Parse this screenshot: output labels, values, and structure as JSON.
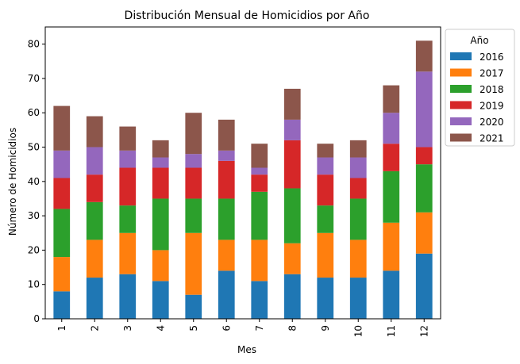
{
  "chart_data": {
    "type": "bar",
    "stacked": true,
    "title": "Distribución Mensual de Homicidios por Año",
    "xlabel": "Mes",
    "ylabel": "Número de Homicidios",
    "categories": [
      "1",
      "2",
      "3",
      "4",
      "5",
      "6",
      "7",
      "8",
      "9",
      "10",
      "11",
      "12"
    ],
    "ylim": [
      0,
      85
    ],
    "yticks": [
      0,
      10,
      20,
      30,
      40,
      50,
      60,
      70,
      80
    ],
    "grid": false,
    "legend": {
      "title": "Año",
      "placement": "outside-top-right"
    },
    "series": [
      {
        "name": "2016",
        "color": "#1f77b4",
        "values": [
          8,
          12,
          13,
          11,
          7,
          14,
          11,
          13,
          12,
          12,
          14,
          19
        ]
      },
      {
        "name": "2017",
        "color": "#ff7f0e",
        "values": [
          10,
          11,
          12,
          9,
          18,
          9,
          12,
          9,
          13,
          11,
          14,
          12
        ]
      },
      {
        "name": "2018",
        "color": "#2ca02c",
        "values": [
          14,
          11,
          8,
          15,
          10,
          12,
          14,
          16,
          8,
          12,
          15,
          14
        ]
      },
      {
        "name": "2019",
        "color": "#d62728",
        "values": [
          9,
          8,
          11,
          9,
          9,
          11,
          5,
          14,
          9,
          6,
          8,
          5
        ]
      },
      {
        "name": "2020",
        "color": "#9467bd",
        "values": [
          8,
          8,
          5,
          3,
          4,
          3,
          2,
          6,
          5,
          6,
          9,
          22
        ]
      },
      {
        "name": "2021",
        "color": "#8c564b",
        "values": [
          13,
          9,
          7,
          5,
          12,
          9,
          7,
          9,
          4,
          5,
          8,
          9
        ]
      }
    ]
  }
}
